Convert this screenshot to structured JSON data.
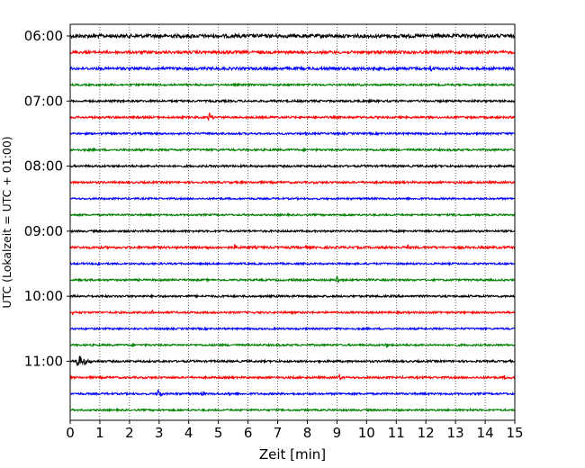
{
  "chart_data": {
    "type": "line",
    "title": "",
    "xlabel": "Zeit  [min]",
    "ylabel": "UTC (Lokalzeit = UTC + 01:00)",
    "xlim": [
      0,
      15
    ],
    "xticks": [
      0,
      1,
      2,
      3,
      4,
      5,
      6,
      7,
      8,
      9,
      10,
      11,
      12,
      13,
      14,
      15
    ],
    "grid": "vertical dotted",
    "legend": "none",
    "series_colors": [
      "#000000",
      "#ff0000",
      "#0000ff",
      "#008000"
    ],
    "series": [
      {
        "start": "06:00",
        "color": "#000000",
        "amplitude": 0.28,
        "events": [
          {
            "t": 7.3,
            "amp": 0.18,
            "dur": 1.0
          }
        ]
      },
      {
        "start": "06:15",
        "color": "#ff0000",
        "amplitude": 0.22,
        "events": [
          {
            "t": 5.2,
            "amp": 0.35,
            "dur": 2.0
          }
        ]
      },
      {
        "start": "06:30",
        "color": "#0000ff",
        "amplitude": 0.22,
        "events": [
          {
            "t": 3.8,
            "amp": 0.22,
            "dur": 2.8
          },
          {
            "t": 12.2,
            "amp": 0.55,
            "dur": 0.2
          }
        ]
      },
      {
        "start": "06:45",
        "color": "#008000",
        "amplitude": 0.15,
        "events": []
      },
      {
        "start": "07:00",
        "color": "#000000",
        "amplitude": 0.16,
        "events": []
      },
      {
        "start": "07:15",
        "color": "#ff0000",
        "amplitude": 0.16,
        "events": [
          {
            "t": 4.7,
            "amp": 0.85,
            "dur": 0.3
          }
        ]
      },
      {
        "start": "07:30",
        "color": "#0000ff",
        "amplitude": 0.15,
        "events": []
      },
      {
        "start": "07:45",
        "color": "#008000",
        "amplitude": 0.16,
        "events": []
      },
      {
        "start": "08:00",
        "color": "#000000",
        "amplitude": 0.16,
        "events": []
      },
      {
        "start": "08:15",
        "color": "#ff0000",
        "amplitude": 0.16,
        "events": [
          {
            "t": 10.3,
            "amp": 0.18,
            "dur": 0.9
          }
        ]
      },
      {
        "start": "08:30",
        "color": "#0000ff",
        "amplitude": 0.14,
        "events": []
      },
      {
        "start": "08:45",
        "color": "#008000",
        "amplitude": 0.14,
        "events": []
      },
      {
        "start": "09:00",
        "color": "#000000",
        "amplitude": 0.15,
        "events": []
      },
      {
        "start": "09:15",
        "color": "#ff0000",
        "amplitude": 0.18,
        "events": [
          {
            "t": 3.6,
            "amp": 0.28,
            "dur": 0.1
          },
          {
            "t": 4.7,
            "amp": 0.38,
            "dur": 0.1
          },
          {
            "t": 5.6,
            "amp": 0.55,
            "dur": 0.15
          },
          {
            "t": 8.0,
            "amp": 0.3,
            "dur": 0.1
          },
          {
            "t": 11.4,
            "amp": 0.4,
            "dur": 0.1
          }
        ]
      },
      {
        "start": "09:30",
        "color": "#0000ff",
        "amplitude": 0.14,
        "events": [
          {
            "t": 0.95,
            "amp": 0.55,
            "dur": 0.12
          }
        ]
      },
      {
        "start": "09:45",
        "color": "#008000",
        "amplitude": 0.15,
        "events": [
          {
            "t": 9.0,
            "amp": 0.9,
            "dur": 0.3
          },
          {
            "t": 7.5,
            "amp": 0.25,
            "dur": 0.1
          }
        ]
      },
      {
        "start": "10:00",
        "color": "#000000",
        "amplitude": 0.16,
        "events": [
          {
            "t": 8.2,
            "amp": 0.25,
            "dur": 0.1
          }
        ]
      },
      {
        "start": "10:15",
        "color": "#ff0000",
        "amplitude": 0.15,
        "events": [
          {
            "t": 0.1,
            "amp": 0.4,
            "dur": 0.1
          },
          {
            "t": 2.8,
            "amp": 0.35,
            "dur": 0.1
          },
          {
            "t": 12.5,
            "amp": 0.35,
            "dur": 0.1
          }
        ]
      },
      {
        "start": "10:30",
        "color": "#0000ff",
        "amplitude": 0.14,
        "events": []
      },
      {
        "start": "10:45",
        "color": "#008000",
        "amplitude": 0.15,
        "events": [
          {
            "t": 10.7,
            "amp": 0.35,
            "dur": 0.15
          }
        ]
      },
      {
        "start": "11:00",
        "color": "#000000",
        "amplitude": 0.16,
        "events": [
          {
            "t": 0.25,
            "amp": 1.1,
            "dur": 0.9
          }
        ]
      },
      {
        "start": "11:15",
        "color": "#ff0000",
        "amplitude": 0.16,
        "events": [
          {
            "t": 9.1,
            "amp": 0.5,
            "dur": 0.25
          },
          {
            "t": 14.7,
            "amp": 0.4,
            "dur": 0.1
          }
        ]
      },
      {
        "start": "11:30",
        "color": "#0000ff",
        "amplitude": 0.15,
        "events": [
          {
            "t": 3.0,
            "amp": 1.1,
            "dur": 0.2
          },
          {
            "t": 4.5,
            "amp": 0.45,
            "dur": 0.1
          },
          {
            "t": 5.4,
            "amp": 0.4,
            "dur": 0.1
          }
        ]
      },
      {
        "start": "11:45",
        "color": "#008000",
        "amplitude": 0.14,
        "events": [
          {
            "t": 13.5,
            "amp": 0.25,
            "dur": 0.1
          }
        ]
      }
    ],
    "ytick_labels": [
      "06:00",
      "07:00",
      "08:00",
      "09:00",
      "10:00",
      "11:00"
    ]
  }
}
